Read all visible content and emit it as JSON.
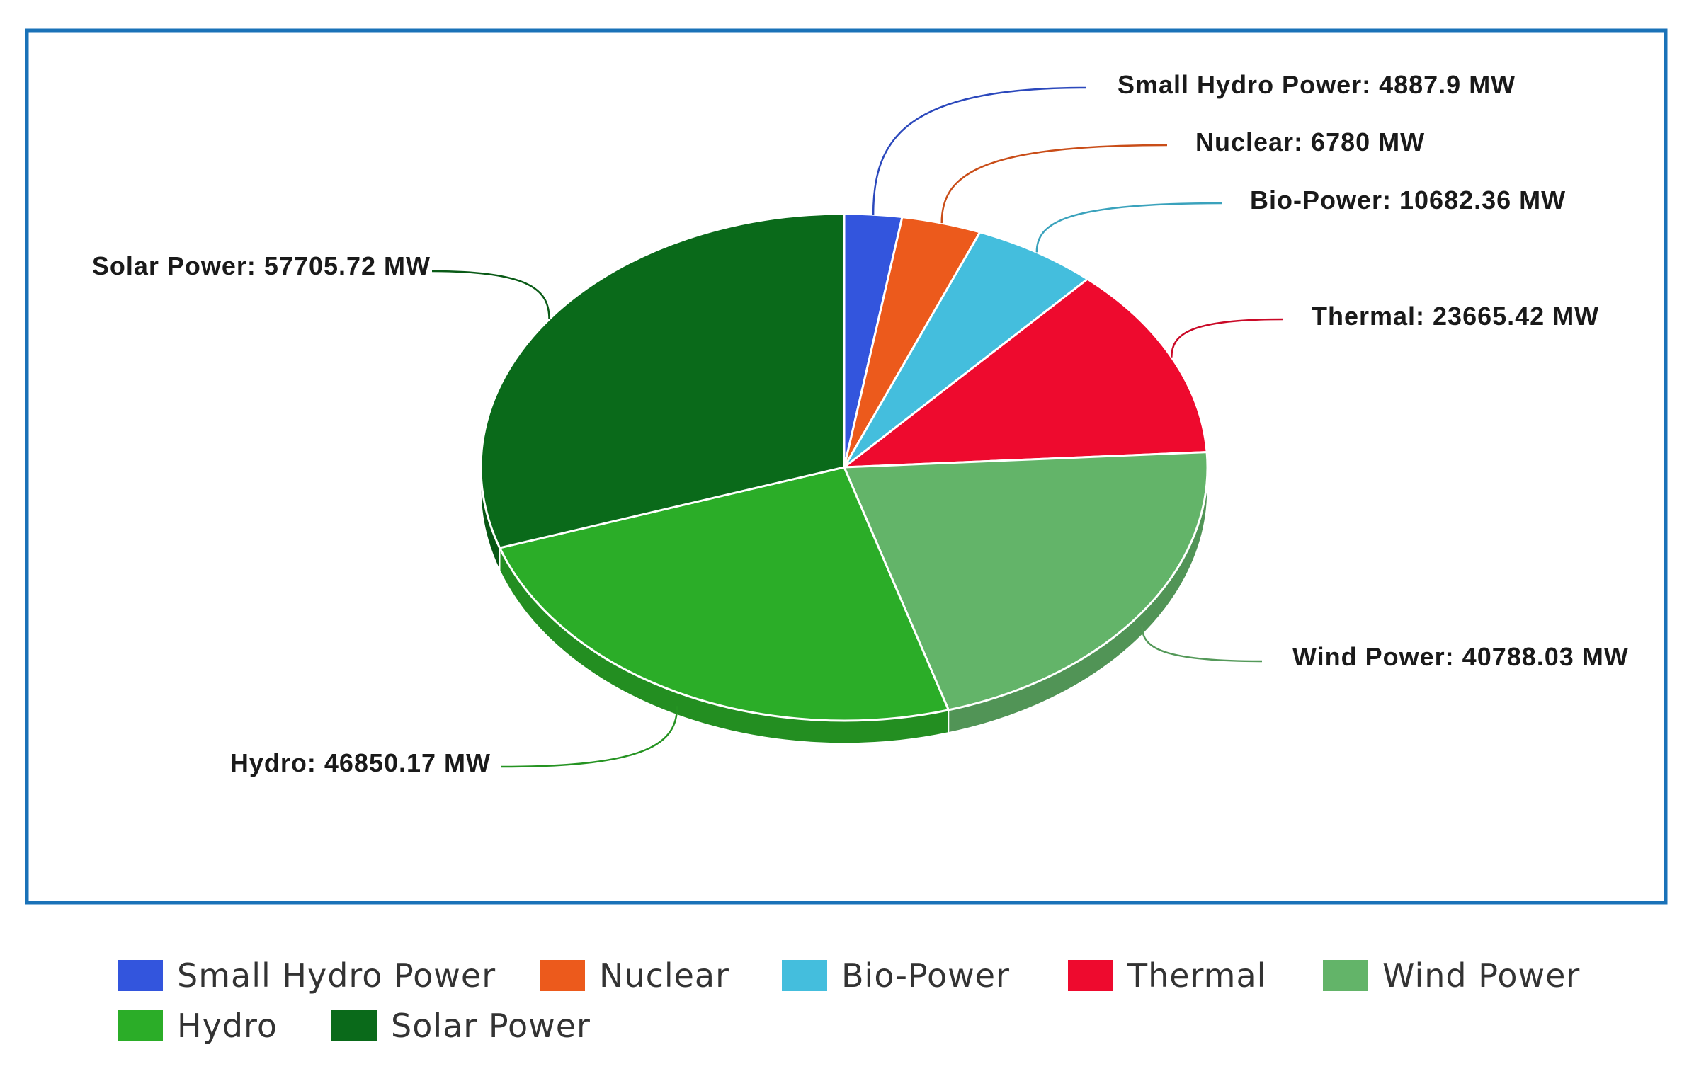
{
  "chart_data": {
    "type": "pie",
    "title": "",
    "unit": "MW",
    "slices": [
      {
        "name": "Small Hydro Power",
        "value": 4887.9,
        "label": "Small Hydro Power: 4887.9 MW",
        "color": "#3355dd"
      },
      {
        "name": "Nuclear",
        "value": 6780,
        "label": "Nuclear: 6780 MW",
        "color": "#ec5a1c"
      },
      {
        "name": "Bio-Power",
        "value": 10682.36,
        "label": "Bio-Power: 10682.36 MW",
        "color": "#44bedd"
      },
      {
        "name": "Thermal",
        "value": 23665.42,
        "label": "Thermal: 23665.42 MW",
        "color": "#ee0a2e"
      },
      {
        "name": "Wind Power",
        "value": 40788.03,
        "label": "Wind Power: 40788.03 MW",
        "color": "#63b469"
      },
      {
        "name": "Hydro",
        "value": 46850.17,
        "label": "Hydro: 46850.17 MW",
        "color": "#2bad28"
      },
      {
        "name": "Solar Power",
        "value": 57705.72,
        "label": "Solar Power: 57705.72 MW",
        "color": "#0a6a1a"
      }
    ],
    "legend_position": "bottom",
    "frame_color": "#1a72b8"
  }
}
